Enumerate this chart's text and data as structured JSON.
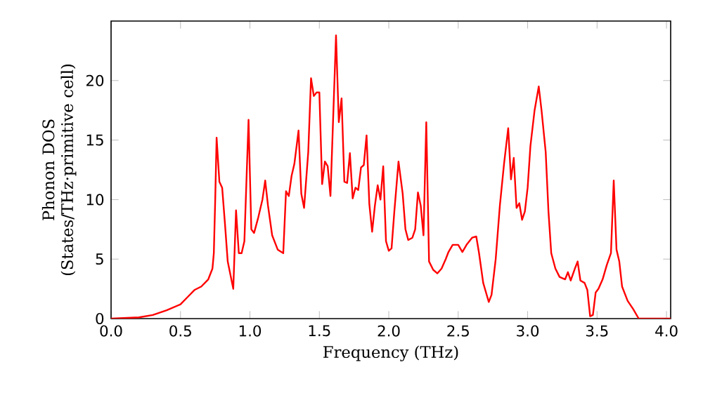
{
  "chart_data": {
    "type": "line",
    "xlabel": "Frequency (THz)",
    "ylabel": "Phonon DOS (States/THz·primitive cell)",
    "xlim": [
      0,
      4.03
    ],
    "ylim": [
      0,
      25
    ],
    "xticks": [
      {
        "value": 0,
        "label": "0.0"
      },
      {
        "value": 0.5,
        "label": "0.5"
      },
      {
        "value": 1,
        "label": "1.0"
      },
      {
        "value": 1.5,
        "label": "1.5"
      },
      {
        "value": 2,
        "label": "2.0"
      },
      {
        "value": 2.5,
        "label": "2.5"
      },
      {
        "value": 3,
        "label": "3.0"
      },
      {
        "value": 3.5,
        "label": "3.5"
      },
      {
        "value": 4,
        "label": "4.0"
      }
    ],
    "yticks": [
      0,
      5,
      10,
      15,
      20
    ],
    "marker": "none",
    "line_style": "solid",
    "series": [
      {
        "color": "#ff0000",
        "x": [
          0.0,
          0.2,
          0.3,
          0.4,
          0.5,
          0.55,
          0.6,
          0.65,
          0.7,
          0.73,
          0.74,
          0.75,
          0.76,
          0.78,
          0.8,
          0.82,
          0.84,
          0.88,
          0.9,
          0.92,
          0.94,
          0.96,
          0.99,
          1.01,
          1.03,
          1.06,
          1.09,
          1.11,
          1.13,
          1.16,
          1.2,
          1.24,
          1.26,
          1.28,
          1.3,
          1.32,
          1.35,
          1.37,
          1.39,
          1.42,
          1.44,
          1.46,
          1.48,
          1.5,
          1.52,
          1.54,
          1.56,
          1.58,
          1.62,
          1.64,
          1.66,
          1.68,
          1.7,
          1.72,
          1.74,
          1.76,
          1.78,
          1.8,
          1.82,
          1.84,
          1.86,
          1.88,
          1.9,
          1.92,
          1.94,
          1.96,
          1.98,
          2.0,
          2.02,
          2.04,
          2.07,
          2.1,
          2.12,
          2.14,
          2.17,
          2.19,
          2.21,
          2.23,
          2.25,
          2.27,
          2.29,
          2.32,
          2.35,
          2.38,
          2.41,
          2.43,
          2.46,
          2.5,
          2.53,
          2.56,
          2.6,
          2.63,
          2.65,
          2.68,
          2.72,
          2.74,
          2.77,
          2.8,
          2.83,
          2.86,
          2.88,
          2.9,
          2.92,
          2.94,
          2.96,
          2.98,
          3.0,
          3.02,
          3.05,
          3.08,
          3.1,
          3.13,
          3.15,
          3.17,
          3.2,
          3.23,
          3.27,
          3.29,
          3.31,
          3.34,
          3.36,
          3.38,
          3.41,
          3.43,
          3.45,
          3.47,
          3.49,
          3.51,
          3.54,
          3.57,
          3.6,
          3.62,
          3.64,
          3.66,
          3.68,
          3.72,
          3.76,
          3.8,
          4.03
        ],
        "values": [
          0.0,
          0.1,
          0.3,
          0.7,
          1.2,
          1.8,
          2.4,
          2.7,
          3.3,
          4.2,
          5.5,
          10,
          15.2,
          11.5,
          11,
          8,
          4.8,
          2.5,
          9.1,
          5.5,
          5.5,
          6.5,
          16.7,
          7.5,
          7.2,
          8.5,
          10,
          11.6,
          9.5,
          7,
          5.8,
          5.5,
          10.7,
          10.3,
          12,
          13,
          15.8,
          10.5,
          9.3,
          14,
          20.2,
          18.7,
          19,
          19,
          11.3,
          13.2,
          12.8,
          10.3,
          23.8,
          16.5,
          18.5,
          11.5,
          11.4,
          13.9,
          10.1,
          11,
          10.8,
          12.7,
          12.9,
          15.4,
          9.6,
          7.3,
          9.5,
          11.2,
          10,
          12.8,
          6.5,
          5.7,
          5.9,
          9,
          13.2,
          10.5,
          7.5,
          6.6,
          6.8,
          7.5,
          10.6,
          9.5,
          7,
          16.5,
          4.8,
          4.1,
          3.8,
          4.2,
          5,
          5.6,
          6.2,
          6.2,
          5.6,
          6.2,
          6.8,
          6.9,
          5.5,
          3,
          1.4,
          2,
          5,
          9.5,
          13,
          16,
          11.7,
          13.5,
          9.3,
          9.7,
          8.3,
          9,
          11,
          14.5,
          17.5,
          19.5,
          17.5,
          14,
          9,
          5.5,
          4.2,
          3.5,
          3.3,
          3.9,
          3.2,
          4.2,
          4.8,
          3.2,
          3,
          2.4,
          0.2,
          0.3,
          2.2,
          2.5,
          3.3,
          4.5,
          5.5,
          11.6,
          5.8,
          4.8,
          2.7,
          1.5,
          0.8,
          0,
          0
        ]
      }
    ]
  }
}
